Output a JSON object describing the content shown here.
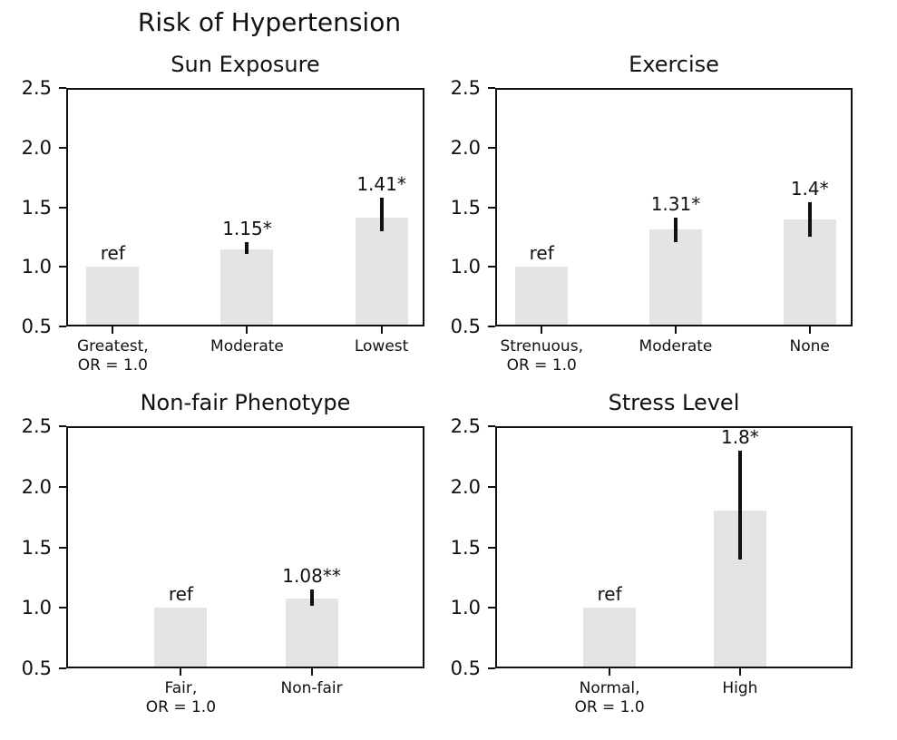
{
  "chart_data": {
    "type": "bar",
    "title": "Risk of Hypertension",
    "ylim": [
      0.5,
      2.5
    ],
    "yticks": [
      2.5,
      2.0,
      1.5,
      1.0,
      0.5
    ],
    "ytick_labels": [
      "2.5",
      "2.0",
      "1.5",
      "1.0",
      "0.5"
    ],
    "grid": false,
    "bar_color": "#e4e4e4",
    "error_color": "#111111",
    "axis_color": "#111111",
    "subplots": [
      {
        "title": "Sun Exposure",
        "categories": [
          "Greatest,\nOR = 1.0",
          "Moderate",
          "Lowest"
        ],
        "values": [
          1.0,
          1.15,
          1.41
        ],
        "bar_labels": [
          "ref",
          "1.15*",
          "1.41*"
        ],
        "err_low": [
          null,
          1.11,
          1.3
        ],
        "err_high": [
          null,
          1.21,
          1.58
        ]
      },
      {
        "title": "Exercise",
        "categories": [
          "Strenuous,\nOR = 1.0",
          "Moderate",
          "None"
        ],
        "values": [
          1.0,
          1.31,
          1.4
        ],
        "bar_labels": [
          "ref",
          "1.31*",
          "1.4*"
        ],
        "err_low": [
          null,
          1.21,
          1.25
        ],
        "err_high": [
          null,
          1.41,
          1.54
        ]
      },
      {
        "title": "Non-fair Phenotype",
        "categories": [
          "Fair,\nOR = 1.0",
          "Non-fair"
        ],
        "values": [
          1.0,
          1.08
        ],
        "bar_labels": [
          "ref",
          "1.08**"
        ],
        "err_low": [
          null,
          1.02
        ],
        "err_high": [
          null,
          1.15
        ]
      },
      {
        "title": "Stress Level",
        "categories": [
          "Normal,\nOR = 1.0",
          "High"
        ],
        "values": [
          1.0,
          1.8
        ],
        "bar_labels": [
          "ref",
          "1.8*"
        ],
        "err_low": [
          null,
          1.4
        ],
        "err_high": [
          null,
          2.3
        ]
      }
    ]
  }
}
